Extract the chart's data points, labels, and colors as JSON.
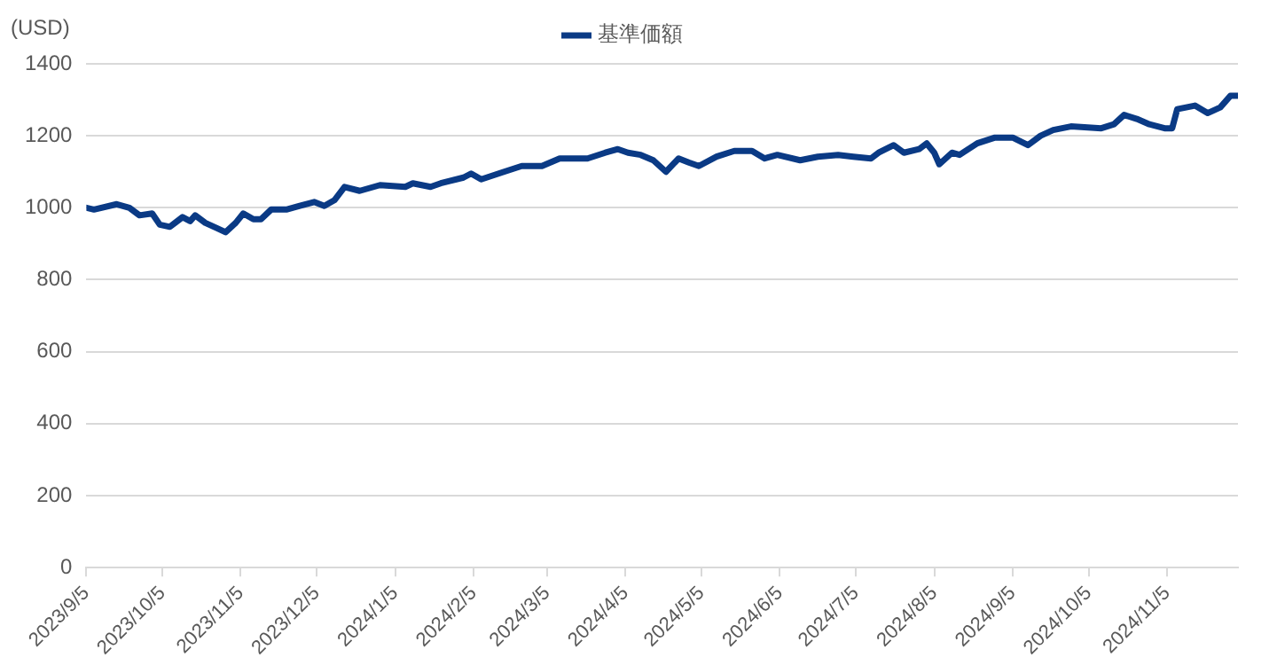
{
  "chart_data": {
    "type": "line",
    "ylabel": "(USD)",
    "legend": "top",
    "grid": "y",
    "marker": "none",
    "line_style": "solid",
    "x": [
      "2023-09-05",
      "2023-09-08",
      "2023-09-17",
      "2023-09-22",
      "2023-09-26",
      "2023-10-01",
      "2023-10-04",
      "2023-10-08",
      "2023-10-13",
      "2023-10-16",
      "2023-10-18",
      "2023-10-22",
      "2023-10-27",
      "2023-10-30",
      "2023-11-03",
      "2023-11-06",
      "2023-11-10",
      "2023-11-13",
      "2023-11-17",
      "2023-11-23",
      "2023-11-28",
      "2023-12-04",
      "2023-12-08",
      "2023-12-12",
      "2023-12-16",
      "2023-12-22",
      "2023-12-30",
      "2024-01-09",
      "2024-01-12",
      "2024-01-19",
      "2024-01-23",
      "2024-02-01",
      "2024-02-04",
      "2024-02-08",
      "2024-02-17",
      "2024-02-24",
      "2024-03-03",
      "2024-03-10",
      "2024-03-21",
      "2024-03-28",
      "2024-04-02",
      "2024-04-06",
      "2024-04-11",
      "2024-04-16",
      "2024-04-21",
      "2024-04-26",
      "2024-04-30",
      "2024-05-04",
      "2024-05-11",
      "2024-05-18",
      "2024-05-25",
      "2024-05-30",
      "2024-06-04",
      "2024-06-13",
      "2024-06-20",
      "2024-06-28",
      "2024-07-04",
      "2024-07-11",
      "2024-07-14",
      "2024-07-20",
      "2024-07-24",
      "2024-07-30",
      "2024-08-02",
      "2024-08-05",
      "2024-08-07",
      "2024-08-12",
      "2024-08-15",
      "2024-08-22",
      "2024-08-29",
      "2024-09-05",
      "2024-09-11",
      "2024-09-16",
      "2024-09-21",
      "2024-09-28",
      "2024-10-10",
      "2024-10-15",
      "2024-10-19",
      "2024-10-24",
      "2024-10-29",
      "2024-11-04",
      "2024-11-07",
      "2024-11-09",
      "2024-11-16",
      "2024-11-21",
      "2024-11-26",
      "2024-11-30",
      "2024-12-03"
    ],
    "series": [
      {
        "name": "基準価額",
        "color": "#0a3a85",
        "values": [
          1000,
          995,
          1010,
          1000,
          979,
          984,
          953,
          947,
          974,
          963,
          979,
          958,
          942,
          932,
          958,
          984,
          968,
          968,
          995,
          995,
          1005,
          1016,
          1005,
          1021,
          1058,
          1047,
          1063,
          1058,
          1068,
          1058,
          1068,
          1084,
          1095,
          1079,
          1100,
          1116,
          1116,
          1137,
          1137,
          1153,
          1163,
          1153,
          1147,
          1132,
          1100,
          1137,
          1126,
          1116,
          1142,
          1158,
          1158,
          1137,
          1147,
          1132,
          1142,
          1147,
          1142,
          1137,
          1153,
          1174,
          1153,
          1163,
          1179,
          1153,
          1121,
          1153,
          1147,
          1179,
          1195,
          1195,
          1174,
          1200,
          1216,
          1226,
          1221,
          1232,
          1258,
          1247,
          1232,
          1221,
          1221,
          1274,
          1284,
          1263,
          1279,
          1311,
          1311
        ]
      }
    ],
    "xlim": [
      "2023-09-05",
      "2024-12-03"
    ],
    "xticks": [
      {
        "value": "2023-09-05",
        "label": "2023/9/5"
      },
      {
        "value": "2023-10-05",
        "label": "2023/10/5"
      },
      {
        "value": "2023-11-05",
        "label": "2023/11/5"
      },
      {
        "value": "2023-12-05",
        "label": "2023/12/5"
      },
      {
        "value": "2024-01-05",
        "label": "2024/1/5"
      },
      {
        "value": "2024-02-05",
        "label": "2024/2/5"
      },
      {
        "value": "2024-03-05",
        "label": "2024/3/5"
      },
      {
        "value": "2024-04-05",
        "label": "2024/4/5"
      },
      {
        "value": "2024-05-05",
        "label": "2024/5/5"
      },
      {
        "value": "2024-06-05",
        "label": "2024/6/5"
      },
      {
        "value": "2024-07-05",
        "label": "2024/7/5"
      },
      {
        "value": "2024-08-05",
        "label": "2024/8/5"
      },
      {
        "value": "2024-09-05",
        "label": "2024/9/5"
      },
      {
        "value": "2024-10-05",
        "label": "2024/10/5"
      },
      {
        "value": "2024-11-05",
        "label": "2024/11/5"
      }
    ],
    "ylim": [
      0,
      1400
    ],
    "yticks": [
      0,
      200,
      400,
      600,
      800,
      1000,
      1200,
      1400
    ]
  }
}
